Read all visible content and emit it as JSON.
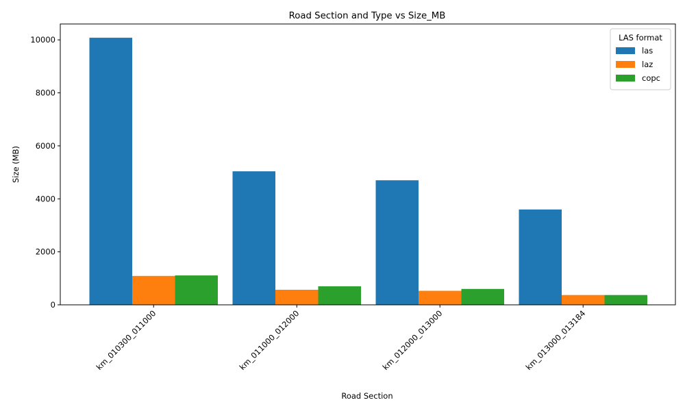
{
  "chart_data": {
    "type": "bar",
    "title": "Road Section and Type vs Size_MB",
    "xlabel": "Road Section",
    "ylabel": "Size (MB)",
    "categories": [
      "km_010300_011000",
      "km_011000_012000",
      "km_012000_013000",
      "km_013000_013184"
    ],
    "ylim": [
      0,
      10600
    ],
    "yticks": [
      0,
      2000,
      4000,
      6000,
      8000,
      10000
    ],
    "legend": {
      "title": "LAS format",
      "placement": "top-right"
    },
    "series": [
      {
        "name": "las",
        "color": "#1f77b4",
        "values": [
          10080,
          5040,
          4700,
          3600
        ]
      },
      {
        "name": "laz",
        "color": "#ff7f0e",
        "values": [
          1090,
          570,
          530,
          370
        ]
      },
      {
        "name": "copc",
        "color": "#2ca02c",
        "values": [
          1110,
          700,
          600,
          370
        ]
      }
    ],
    "grid": false
  }
}
